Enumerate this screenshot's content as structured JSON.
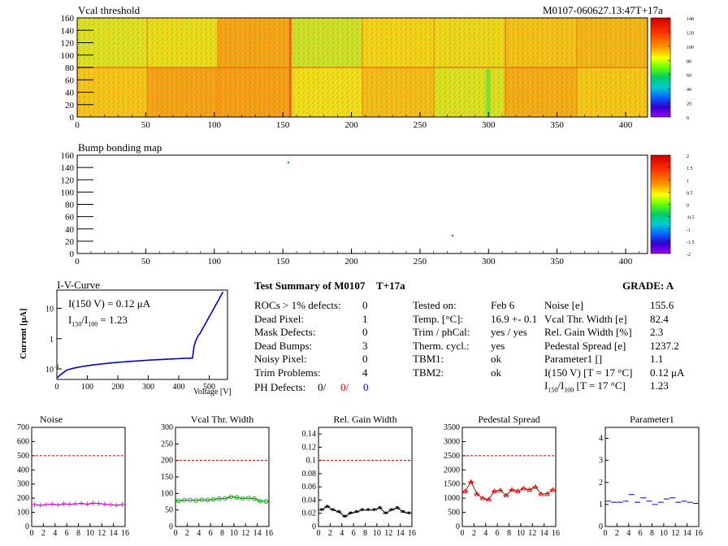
{
  "header": {
    "vcal_title": "Vcal threshold",
    "module_id": "M0107-060627.13:47T+17a",
    "bump_title": "Bump bonding map"
  },
  "maps": {
    "x_ticks": [
      "0",
      "50",
      "100",
      "150",
      "200",
      "250",
      "300",
      "350",
      "400"
    ],
    "y_ticks": [
      "0",
      "20",
      "40",
      "60",
      "80",
      "100",
      "120",
      "140",
      "160"
    ],
    "vcal_scale_ticks": [
      "140",
      "120",
      "100",
      "80",
      "60",
      "40",
      "20",
      "0"
    ],
    "bump_scale_ticks": [
      "2",
      "1.5",
      "1",
      "0.5",
      "0",
      "-0.5",
      "-1",
      "-1.5",
      "-2"
    ]
  },
  "iv": {
    "title": "I-V-Curve",
    "ylabel": "Current [μA]",
    "xlabel": "Voltage [V]",
    "anno1": "I(150 V) = 0.12 μA",
    "anno2_a": "I",
    "anno2_b": "150",
    "anno2_c": "/I",
    "anno2_d": "100",
    "anno2_e": " =  1.23",
    "x_ticks": [
      "0",
      "100",
      "200",
      "300",
      "400",
      "500"
    ],
    "y_ticks": [
      "10",
      "1",
      "10"
    ],
    "y_tick_exp": "-1"
  },
  "summary": {
    "title": "Test Summary of M0107",
    "suffix": "T+17a",
    "grade": "GRADE:  A",
    "left": [
      {
        "label": "ROCs > 1% defects:",
        "value": "0"
      },
      {
        "label": "Dead Pixel:",
        "value": "1"
      },
      {
        "label": "Mask Defects:",
        "value": "0"
      },
      {
        "label": "Dead Bumps:",
        "value": "3"
      },
      {
        "label": "Noisy Pixel:",
        "value": "0"
      },
      {
        "label": "Trim Problems:",
        "value": "4"
      }
    ],
    "ph_label": "PH Defects:",
    "ph_v1": "0/",
    "ph_v2": "0/",
    "ph_v3": "0",
    "mid": [
      {
        "label": "Tested on:",
        "value": "Feb 6"
      },
      {
        "label": "Temp. [°C]:",
        "value": "16.9 +- 0.1"
      },
      {
        "label": "Trim / phCal:",
        "value": "yes / yes"
      },
      {
        "label": "Therm. cycl.:",
        "value": "yes"
      },
      {
        "label": "TBM1:",
        "value": "ok"
      },
      {
        "label": "TBM2:",
        "value": "ok"
      }
    ],
    "right": [
      {
        "label": "Noise [e]",
        "value": "155.6"
      },
      {
        "label": "Vcal Thr. Width [e]",
        "value": "82.4"
      },
      {
        "label": "Rel. Gain Width [%]",
        "value": "2.3"
      },
      {
        "label": "Pedestal Spread [e]",
        "value": "1237.2"
      },
      {
        "label": "Parameter1 []",
        "value": "1.1"
      },
      {
        "label": "I(150 V) [T = 17 °C]",
        "value": "0.12 μA"
      }
    ],
    "ratio_a": "I",
    "ratio_b": "150",
    "ratio_c": "/I",
    "ratio_d": "100",
    "ratio_e": "  [T = 17 °C]",
    "ratio_value": "1.23"
  },
  "chart_data": [
    {
      "type": "line",
      "title": "Noise",
      "color": "#cc00cc",
      "x": [
        0,
        1,
        2,
        3,
        4,
        5,
        6,
        7,
        8,
        9,
        10,
        11,
        12,
        13,
        14,
        15
      ],
      "values": [
        155,
        150,
        155,
        158,
        152,
        160,
        157,
        160,
        163,
        158,
        165,
        162,
        158,
        155,
        150,
        155
      ],
      "limit": 500,
      "ylim": [
        0,
        700
      ],
      "yticks": [
        "0",
        "100",
        "200",
        "300",
        "400",
        "500",
        "600",
        "700"
      ]
    },
    {
      "type": "line",
      "title": "Vcal Thr. Width",
      "color": "#009900",
      "x": [
        0,
        1,
        2,
        3,
        4,
        5,
        6,
        7,
        8,
        9,
        10,
        11,
        12,
        13,
        14,
        15
      ],
      "values": [
        78,
        80,
        80,
        79,
        81,
        80,
        82,
        84,
        85,
        90,
        88,
        85,
        86,
        84,
        77,
        76
      ],
      "limit": 200,
      "ylim": [
        0,
        300
      ],
      "yticks": [
        "0",
        "50",
        "100",
        "150",
        "200",
        "250",
        "300"
      ]
    },
    {
      "type": "line",
      "title": "Rel. Gain Width",
      "color": "#000000",
      "x": [
        0,
        1,
        2,
        3,
        4,
        5,
        6,
        7,
        8,
        9,
        10,
        11,
        12,
        13,
        14,
        15
      ],
      "values": [
        0.025,
        0.03,
        0.025,
        0.022,
        0.015,
        0.02,
        0.022,
        0.025,
        0.025,
        0.025,
        0.028,
        0.02,
        0.025,
        0.028,
        0.022,
        0.02
      ],
      "limit": 0.1,
      "ylim": [
        0,
        0.15
      ],
      "yticks": [
        "0",
        "0.02",
        "0.04",
        "0.06",
        "0.08",
        "0.1",
        "0.12",
        "0.14"
      ]
    },
    {
      "type": "line",
      "title": "Pedestal Spread",
      "color": "#cc0000",
      "x": [
        0,
        1,
        2,
        3,
        4,
        5,
        6,
        7,
        8,
        9,
        10,
        11,
        12,
        13,
        14,
        15
      ],
      "values": [
        1250,
        1580,
        1150,
        1000,
        950,
        1250,
        1280,
        1100,
        1300,
        1250,
        1350,
        1300,
        1400,
        1150,
        1150,
        1300
      ],
      "limit": 2500,
      "ylim": [
        0,
        3500
      ],
      "yticks": [
        "0",
        "500",
        "1000",
        "1500",
        "2000",
        "2500",
        "3000",
        "3500"
      ]
    },
    {
      "type": "scatter",
      "title": "Parameter1",
      "color": "#0000cc",
      "x": [
        0,
        1,
        2,
        3,
        4,
        5,
        6,
        7,
        8,
        9,
        10,
        11,
        12,
        13,
        14,
        15
      ],
      "values": [
        1.15,
        1.1,
        1.1,
        1.15,
        1.45,
        1.1,
        1.3,
        1.15,
        1.0,
        1.1,
        1.25,
        1.3,
        1.1,
        1.15,
        1.1,
        1.05
      ],
      "limit": null,
      "ylim": [
        0,
        4.5
      ],
      "yticks": [
        "0",
        "1",
        "2",
        "3",
        "4"
      ]
    }
  ],
  "small_x_ticks": [
    "0",
    "2",
    "4",
    "6",
    "8",
    "10",
    "12",
    "14",
    "16"
  ]
}
